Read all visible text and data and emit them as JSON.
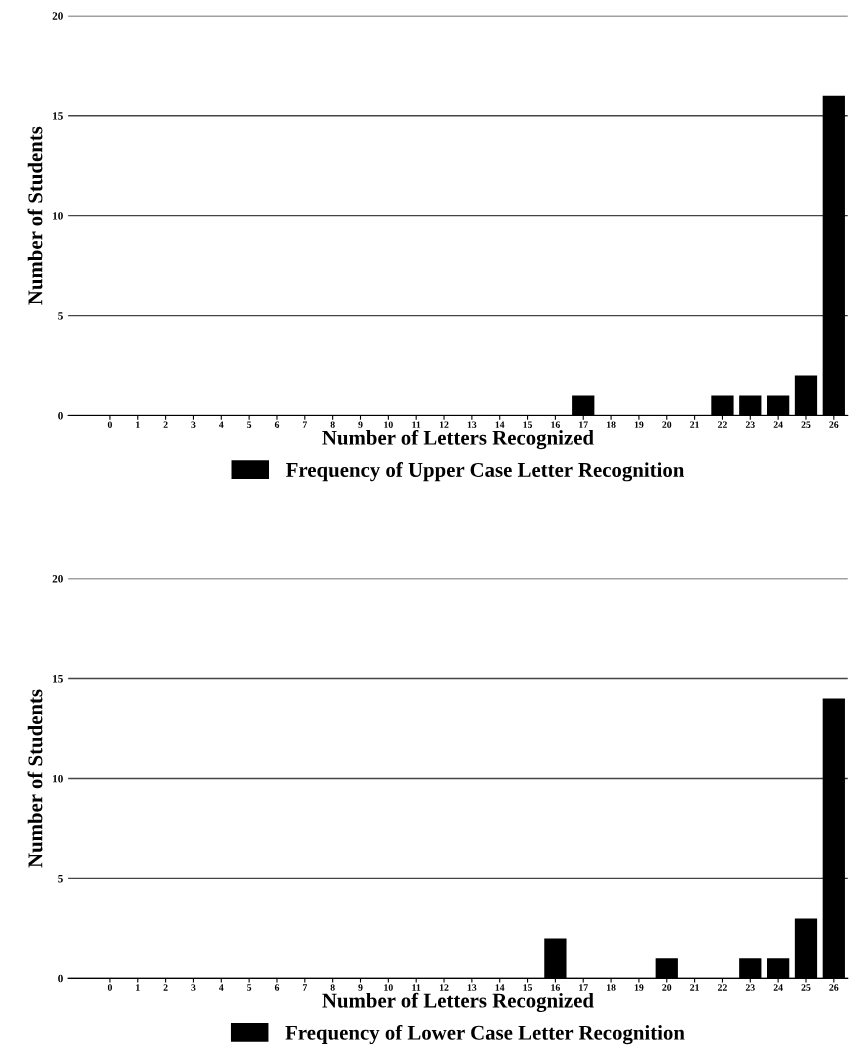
{
  "chart_data": [
    {
      "type": "bar",
      "xlabel": "Number of Letters Recognized",
      "ylabel": "Number of Students",
      "categories": [
        "0",
        "1",
        "2",
        "3",
        "4",
        "5",
        "6",
        "7",
        "8",
        "9",
        "10",
        "11",
        "12",
        "13",
        "14",
        "15",
        "16",
        "17",
        "18",
        "19",
        "20",
        "21",
        "22",
        "23",
        "24",
        "25",
        "26"
      ],
      "series": [
        {
          "name": "Frequency of Upper Case Letter Recognition",
          "color": "#000000",
          "values": [
            0,
            0,
            0,
            0,
            0,
            0,
            0,
            0,
            0,
            0,
            0,
            0,
            0,
            0,
            0,
            0,
            0,
            1,
            0,
            0,
            0,
            0,
            1,
            1,
            1,
            2,
            16
          ]
        }
      ],
      "ylim": [
        0,
        20
      ],
      "yticks": [
        0,
        5,
        10,
        15,
        20
      ],
      "grid": "y",
      "legend": "bottom"
    },
    {
      "type": "bar",
      "xlabel": "Number of Letters Recognized",
      "ylabel": "Number of Students",
      "categories": [
        "0",
        "1",
        "2",
        "3",
        "4",
        "5",
        "6",
        "7",
        "8",
        "9",
        "10",
        "11",
        "12",
        "13",
        "14",
        "15",
        "16",
        "17",
        "18",
        "19",
        "20",
        "21",
        "22",
        "23",
        "24",
        "25",
        "26"
      ],
      "series": [
        {
          "name": "Frequency of Lower Case Letter Recognition",
          "color": "#000000",
          "values": [
            0,
            0,
            0,
            0,
            0,
            0,
            0,
            0,
            0,
            0,
            0,
            0,
            0,
            0,
            0,
            0,
            2,
            0,
            0,
            0,
            1,
            0,
            0,
            1,
            1,
            3,
            14
          ]
        }
      ],
      "ylim": [
        0,
        20
      ],
      "yticks": [
        0,
        5,
        10,
        15,
        20
      ],
      "grid": "y",
      "legend": "bottom"
    }
  ]
}
